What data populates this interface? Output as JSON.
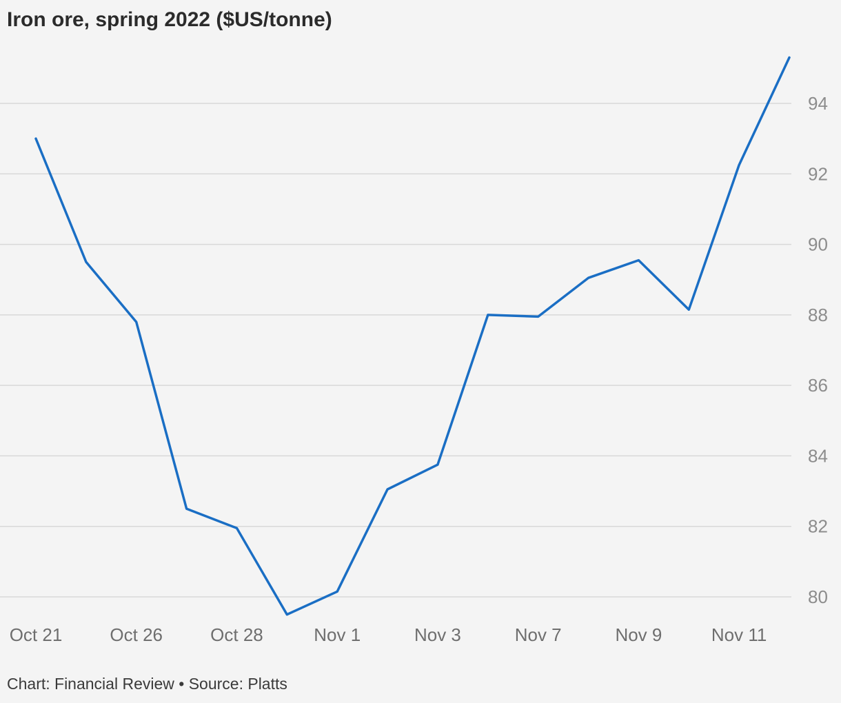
{
  "chart_data": {
    "type": "line",
    "title": "Iron ore, spring 2022 ($US/tonne)",
    "xlabel": "",
    "ylabel": "",
    "x": [
      "Oct 21",
      "",
      "Oct 26",
      "",
      "Oct 28",
      "",
      "Nov 1",
      "",
      "Nov 3",
      "",
      "Nov 7",
      "",
      "Nov 9",
      "",
      "Nov 11",
      ""
    ],
    "x_tick_labels": [
      "Oct 21",
      "Oct 26",
      "Oct 28",
      "Nov 1",
      "Nov 3",
      "Nov 7",
      "Nov 9",
      "Nov 11"
    ],
    "series": [
      {
        "values": [
          93.0,
          89.5,
          87.8,
          82.5,
          81.95,
          79.5,
          80.15,
          83.05,
          83.75,
          88.0,
          87.95,
          89.05,
          89.55,
          88.15,
          92.25,
          95.3
        ]
      }
    ],
    "y_ticks": [
      80,
      82,
      84,
      86,
      88,
      90,
      92,
      94
    ],
    "ylim": [
      79.4,
      95.6
    ],
    "grid": true,
    "y_axis_side": "right",
    "colors": {
      "line": "#1a6ec4",
      "grid": "#d8d8d8",
      "background": "#f4f4f4"
    }
  },
  "footer": "Chart: Financial Review • Source: Platts"
}
